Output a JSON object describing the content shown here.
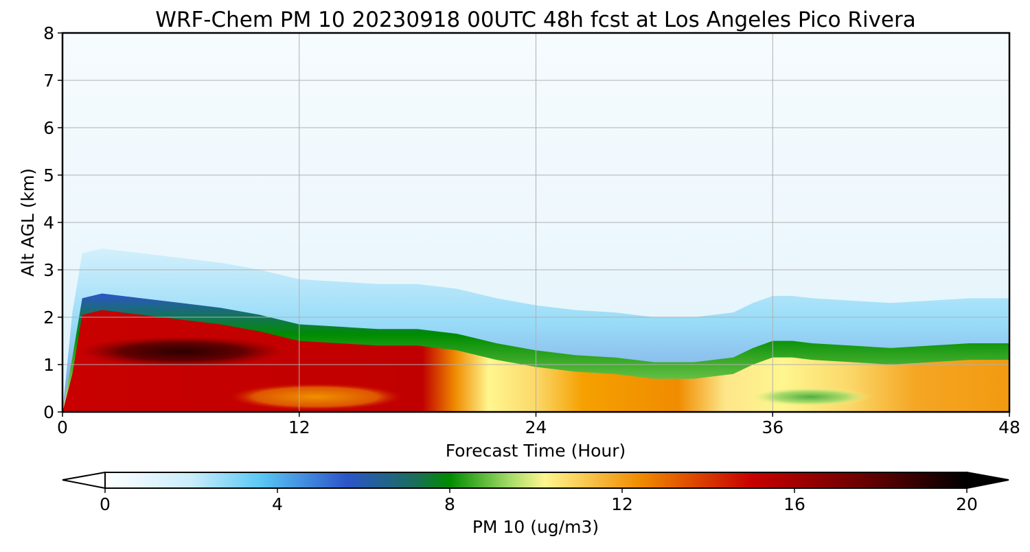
{
  "chart_data": {
    "type": "heatmap",
    "title": "WRF-Chem PM 10  20230918 00UTC 48h fcst at Los Angeles Pico Rivera",
    "xlabel": "Forecast Time (Hour)",
    "ylabel": "Alt AGL (km)",
    "xlim": [
      0,
      48
    ],
    "ylim": [
      0,
      8
    ],
    "xticks": [
      0,
      12,
      24,
      36,
      48
    ],
    "yticks": [
      0,
      1,
      2,
      3,
      4,
      5,
      6,
      7,
      8
    ],
    "grid": true,
    "colorbar": {
      "label": "PM 10  (ug/m3)",
      "min": 0,
      "max": 20,
      "ticks": [
        0,
        4,
        8,
        12,
        16,
        20
      ],
      "extend": "both",
      "orientation": "horizontal",
      "colors": [
        "#ffffff",
        "#5bc8f5",
        "#2c55c9",
        "#008c00",
        "#fff68f",
        "#f08c00",
        "#c80000",
        "#000000"
      ]
    },
    "x_hours": [
      0,
      0.5,
      1,
      2,
      4,
      6,
      8,
      10,
      12,
      14,
      16,
      18,
      20,
      21,
      22,
      24,
      26,
      28,
      30,
      32,
      34,
      35,
      36,
      37,
      38,
      40,
      42,
      44,
      46,
      48
    ],
    "boundary_layer_top_km": [
      0,
      0.8,
      2.05,
      2.15,
      2.05,
      1.95,
      1.85,
      1.7,
      1.5,
      1.45,
      1.4,
      1.4,
      1.3,
      1.2,
      1.1,
      0.95,
      0.85,
      0.8,
      0.7,
      0.7,
      0.8,
      1.0,
      1.15,
      1.15,
      1.1,
      1.05,
      1.0,
      1.05,
      1.1,
      1.1
    ],
    "surface_layer_pm10": [
      3,
      14,
      16,
      16.5,
      17,
      17.5,
      17,
      16.5,
      15.5,
      15.5,
      16,
      15.5,
      12.5,
      11,
      10,
      10.5,
      12,
      12.5,
      13.5,
      13.5,
      11.5,
      10.5,
      10,
      9.5,
      10,
      10,
      10.5,
      11,
      11.5,
      11.5
    ]
  }
}
